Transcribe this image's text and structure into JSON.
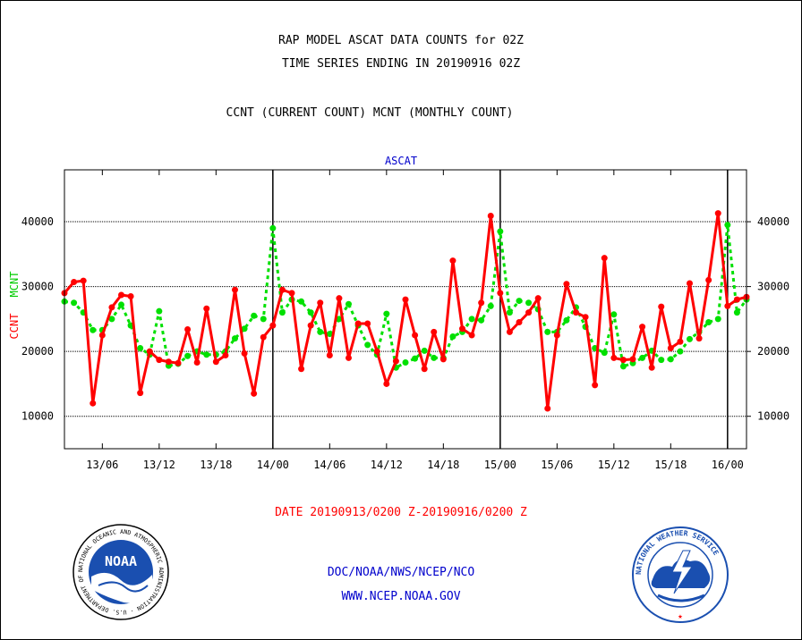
{
  "header": {
    "title_line1": "RAP MODEL ASCAT DATA COUNTS for 02Z",
    "title_line2": "TIME SERIES ENDING IN 20190916 02Z",
    "subtitle": "CCNT (CURRENT COUNT) MCNT (MONTHLY COUNT)"
  },
  "footer": {
    "date_range": "DATE 20190913/0200 Z-20190916/0200 Z",
    "org": "DOC/NOAA/NWS/NCEP/NCO",
    "url": "WWW.NCEP.NOAA.GOV",
    "noaa_logo_text": "NOAA",
    "noaa_ring_text": "NATIONAL OCEANIC AND ATMOSPHERIC ADMINISTRATION · U.S. DEPARTMENT OF COMMERCE ·",
    "nws_ring_text": "NATIONAL WEATHER SERVICE"
  },
  "colors": {
    "ccnt": "#ff0000",
    "mcnt": "#00e000",
    "frame": "#000000",
    "link": "#0000cc"
  },
  "chart_data": {
    "type": "line",
    "title": "ASCAT",
    "ylabel_ccnt": "CCNT",
    "ylabel_mcnt": "MCNT",
    "ylim": [
      5000,
      48000
    ],
    "yticks": [
      10000,
      20000,
      30000,
      40000
    ],
    "x_tick_labels": [
      "13/06",
      "13/12",
      "13/18",
      "14/00",
      "14/06",
      "14/12",
      "14/18",
      "15/00",
      "15/06",
      "15/12",
      "15/18",
      "16/00"
    ],
    "x_tick_hours": [
      4,
      10,
      16,
      22,
      28,
      34,
      40,
      46,
      52,
      58,
      64,
      70
    ],
    "day_boundary_hours": [
      22,
      46,
      70
    ],
    "x_range_hours": [
      0,
      72
    ],
    "grid": true,
    "series": [
      {
        "name": "CCNT",
        "color": "#ff0000",
        "values": [
          29000,
          30700,
          30900,
          12000,
          22500,
          26800,
          28700,
          28500,
          13600,
          20000,
          18700,
          18400,
          18200,
          23400,
          18300,
          26600,
          18400,
          19400,
          29500,
          19700,
          13500,
          22200,
          24000,
          29500,
          29000,
          17300,
          24000,
          27500,
          19400,
          28200,
          19000,
          24300,
          24300,
          20000,
          15000,
          18500,
          28000,
          22500,
          17300,
          23000,
          18800,
          34000,
          23500,
          22500,
          27500,
          40900,
          29000,
          23000,
          24500,
          26000,
          28200,
          11200,
          22500,
          30400,
          26000,
          25300,
          14800,
          34400,
          19000,
          18700,
          18800,
          23800,
          17500,
          26900,
          20500,
          21500,
          30500,
          22000,
          31000,
          41300,
          27000,
          28000,
          28400
        ],
        "values_note": "hourly 00..72"
      },
      {
        "name": "MCNT",
        "color": "#00e000",
        "values": [
          27700,
          27500,
          26000,
          23300,
          23300,
          25000,
          27200,
          24000,
          20500,
          19500,
          26200,
          17800,
          18100,
          19300,
          20000,
          19500,
          19500,
          20000,
          22000,
          23500,
          25500,
          25000,
          39000,
          26000,
          28000,
          27700,
          26000,
          23000,
          22700,
          25000,
          27300,
          24000,
          21000,
          19500,
          25800,
          17500,
          18300,
          18900,
          20100,
          19000,
          19000,
          22300,
          23000,
          25000,
          24800,
          27000,
          38500,
          26000,
          27800,
          27500,
          26500,
          23000,
          23000,
          24800,
          26800,
          23800,
          20500,
          19800,
          25700,
          17700,
          18200,
          19000,
          20100,
          18700,
          18800,
          20000,
          21900,
          23000,
          24500,
          25000,
          39500,
          26000,
          28000
        ]
      }
    ]
  }
}
